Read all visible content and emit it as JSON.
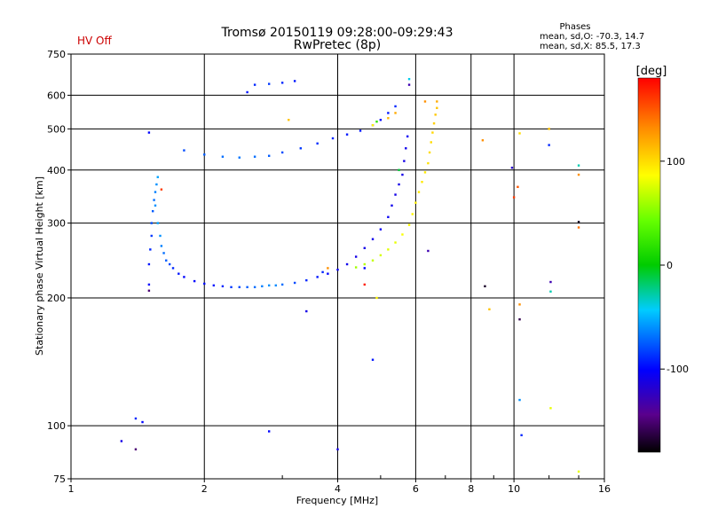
{
  "header": {
    "title": "Tromsø 20150119 09:28:00-09:29:43",
    "subtitle": "RwPretec (8p)",
    "status": "HV Off",
    "status_color": "#cc0000",
    "stats_title": "Phases",
    "stats_line1": "mean, sd,O: -70.3, 14.7",
    "stats_line2": "mean, sd,X:  85.5, 17.3"
  },
  "chart_data": {
    "type": "scatter",
    "title": "Tromsø 20150119 09:28:00-09:29:43",
    "subtitle": "RwPretec (8p)",
    "xlabel": "Frequency [MHz]",
    "ylabel": "Stationary phase Virtual Height [km]",
    "x_scale": "log",
    "y_scale": "log",
    "xlim": [
      1,
      16
    ],
    "ylim": [
      75,
      750
    ],
    "x_ticks": [
      1,
      2,
      4,
      6,
      8,
      10,
      16
    ],
    "y_ticks": [
      75,
      100,
      200,
      300,
      400,
      500,
      600,
      750
    ],
    "x_grid": [
      2,
      4,
      6,
      8,
      10
    ],
    "y_grid": [
      100,
      200,
      300,
      400,
      500,
      600
    ],
    "grid": true,
    "colorbar": {
      "label": "[deg]",
      "range": [
        -180,
        180
      ],
      "ticks": [
        -100,
        0,
        100
      ]
    },
    "series": [
      {
        "mode": "O",
        "points": [
          [
            1.5,
            215,
            -100
          ],
          [
            1.5,
            240,
            -95
          ],
          [
            1.51,
            260,
            -90
          ],
          [
            1.52,
            280,
            -85
          ],
          [
            1.52,
            300,
            -80
          ],
          [
            1.53,
            320,
            -75
          ],
          [
            1.54,
            340,
            -70
          ],
          [
            1.55,
            355,
            -65
          ],
          [
            1.56,
            370,
            -60
          ],
          [
            1.57,
            385,
            -55
          ],
          [
            1.55,
            330,
            -60
          ],
          [
            1.57,
            300,
            -55
          ],
          [
            1.59,
            280,
            -60
          ],
          [
            1.6,
            265,
            -65
          ],
          [
            1.62,
            255,
            -70
          ],
          [
            1.64,
            245,
            -75
          ],
          [
            1.67,
            240,
            -80
          ],
          [
            1.7,
            235,
            -90
          ],
          [
            1.75,
            228,
            -95
          ],
          [
            1.8,
            224,
            -100
          ],
          [
            1.9,
            219,
            -100
          ],
          [
            2.0,
            216,
            -98
          ],
          [
            2.1,
            214,
            -95
          ],
          [
            2.2,
            213,
            -90
          ],
          [
            2.3,
            212,
            -85
          ],
          [
            2.4,
            212,
            -80
          ],
          [
            2.5,
            212,
            -75
          ],
          [
            2.6,
            212,
            -70
          ],
          [
            2.7,
            213,
            -65
          ],
          [
            2.8,
            214,
            -60
          ],
          [
            2.9,
            214,
            -62
          ],
          [
            3.0,
            215,
            -70
          ],
          [
            3.2,
            217,
            -80
          ],
          [
            3.4,
            220,
            -90
          ],
          [
            3.6,
            224,
            -95
          ],
          [
            3.8,
            228,
            -100
          ],
          [
            4.0,
            233,
            -105
          ],
          [
            4.2,
            240,
            -108
          ],
          [
            4.4,
            250,
            -110
          ],
          [
            4.6,
            262,
            -110
          ],
          [
            4.8,
            275,
            -108
          ],
          [
            5.0,
            290,
            -105
          ],
          [
            5.2,
            310,
            -105
          ],
          [
            5.3,
            330,
            -108
          ],
          [
            5.4,
            350,
            -110
          ],
          [
            5.5,
            370,
            -110
          ],
          [
            5.6,
            390,
            -110
          ],
          [
            5.65,
            420,
            -110
          ],
          [
            5.7,
            450,
            -108
          ],
          [
            5.75,
            480,
            -105
          ],
          [
            1.8,
            445,
            -80
          ],
          [
            2.0,
            435,
            -75
          ],
          [
            2.2,
            430,
            -70
          ],
          [
            2.4,
            428,
            -68
          ],
          [
            2.6,
            430,
            -70
          ],
          [
            2.8,
            432,
            -75
          ],
          [
            3.0,
            440,
            -80
          ],
          [
            3.3,
            450,
            -85
          ],
          [
            3.6,
            462,
            -88
          ],
          [
            3.9,
            475,
            -90
          ],
          [
            4.2,
            485,
            -95
          ],
          [
            4.5,
            495,
            -95
          ],
          [
            4.8,
            510,
            -100
          ],
          [
            5.0,
            525,
            -100
          ],
          [
            5.2,
            545,
            -95
          ],
          [
            5.4,
            565,
            -90
          ],
          [
            2.5,
            610,
            -95
          ],
          [
            2.6,
            635,
            -90
          ],
          [
            2.8,
            638,
            -85
          ],
          [
            3.0,
            642,
            -90
          ],
          [
            3.2,
            648,
            -95
          ],
          [
            1.3,
            92,
            -110
          ],
          [
            1.4,
            104,
            -90
          ],
          [
            1.45,
            102,
            -100
          ],
          [
            2.8,
            97,
            -100
          ],
          [
            4.0,
            88,
            -110
          ],
          [
            3.4,
            186,
            -110
          ],
          [
            4.8,
            143,
            -95
          ],
          [
            4.6,
            235,
            -100
          ]
        ]
      },
      {
        "mode": "X",
        "points": [
          [
            4.4,
            236,
            60
          ],
          [
            4.6,
            240,
            65
          ],
          [
            4.8,
            245,
            70
          ],
          [
            5.0,
            252,
            75
          ],
          [
            5.2,
            260,
            78
          ],
          [
            5.4,
            270,
            80
          ],
          [
            5.6,
            282,
            85
          ],
          [
            5.8,
            297,
            88
          ],
          [
            5.9,
            315,
            90
          ],
          [
            6.0,
            335,
            92
          ],
          [
            6.1,
            355,
            95
          ],
          [
            6.2,
            375,
            95
          ],
          [
            6.3,
            395,
            95
          ],
          [
            6.4,
            415,
            98
          ],
          [
            6.45,
            440,
            100
          ],
          [
            6.5,
            465,
            100
          ],
          [
            6.55,
            490,
            102
          ],
          [
            6.6,
            515,
            105
          ],
          [
            6.65,
            540,
            108
          ],
          [
            6.7,
            560,
            110
          ],
          [
            5.2,
            530,
            115
          ],
          [
            5.4,
            545,
            120
          ],
          [
            3.1,
            525,
            110
          ],
          [
            4.8,
            510,
            90
          ]
        ]
      },
      {
        "mode": "noise",
        "points": [
          [
            1.5,
            490,
            -100
          ],
          [
            1.6,
            360,
            160
          ],
          [
            1.5,
            208,
            -150
          ],
          [
            1.4,
            88,
            -150
          ],
          [
            3.8,
            235,
            130
          ],
          [
            3.7,
            230,
            -90
          ],
          [
            4.6,
            215,
            170
          ],
          [
            4.9,
            200,
            90
          ],
          [
            8.5,
            470,
            130
          ],
          [
            8.6,
            213,
            -170
          ],
          [
            8.8,
            188,
            110
          ],
          [
            9.9,
            405,
            -120
          ],
          [
            10.0,
            345,
            160
          ],
          [
            10.2,
            365,
            150
          ],
          [
            10.3,
            488,
            100
          ],
          [
            10.3,
            193,
            130
          ],
          [
            10.3,
            178,
            -160
          ],
          [
            10.4,
            95,
            -90
          ],
          [
            10.3,
            115,
            -60
          ],
          [
            12.0,
            500,
            110
          ],
          [
            12.0,
            458,
            -90
          ],
          [
            12.1,
            218,
            -130
          ],
          [
            12.1,
            207,
            -30
          ],
          [
            12.1,
            110,
            80
          ],
          [
            14.0,
            410,
            -30
          ],
          [
            14.0,
            390,
            130
          ],
          [
            14.0,
            302,
            -170
          ],
          [
            14.0,
            293,
            140
          ],
          [
            14.0,
            78,
            80
          ],
          [
            5.8,
            655,
            -40
          ],
          [
            6.3,
            580,
            130
          ],
          [
            6.7,
            580,
            120
          ],
          [
            6.4,
            258,
            -130
          ],
          [
            5.8,
            635,
            -130
          ],
          [
            4.9,
            520,
            20
          ],
          [
            5.5,
            400,
            -10
          ]
        ]
      }
    ]
  }
}
